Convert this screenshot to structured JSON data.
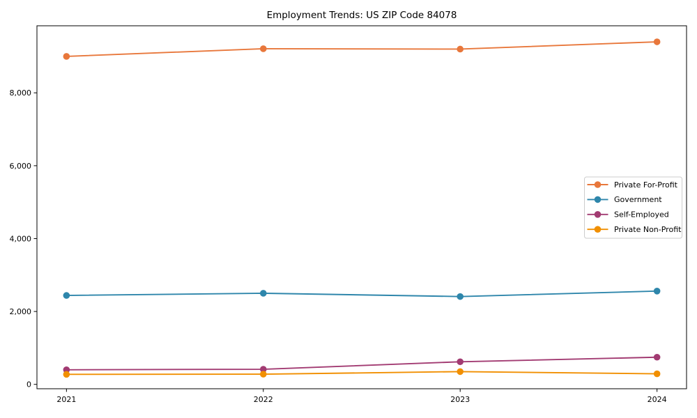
{
  "chart_data": {
    "type": "line",
    "title": "Employment Trends: US ZIP Code 84078",
    "x": [
      2021,
      2022,
      2023,
      2024
    ],
    "x_tick_labels": [
      "2021",
      "2022",
      "2023",
      "2024"
    ],
    "series": [
      {
        "name": "Private For-Profit",
        "color": "#e8773b",
        "values": [
          9000,
          9210,
          9200,
          9400
        ]
      },
      {
        "name": "Government",
        "color": "#2e86ab",
        "values": [
          2440,
          2500,
          2410,
          2560
        ]
      },
      {
        "name": "Self-Employed",
        "color": "#a23b72",
        "values": [
          400,
          415,
          620,
          745
        ]
      },
      {
        "name": "Private Non-Profit",
        "color": "#f18f01",
        "values": [
          275,
          280,
          350,
          290
        ]
      }
    ],
    "yticks": [
      0,
      2000,
      4000,
      6000,
      8000
    ],
    "ytick_labels": [
      "0",
      "2,000",
      "4,000",
      "6,000",
      "8,000"
    ],
    "ylim": [
      -120,
      9840
    ],
    "xlim": [
      2020.85,
      2024.15
    ],
    "grid": false,
    "marker": "circle",
    "xlabel": "",
    "ylabel": "",
    "legend": {
      "position": "center-right",
      "border_color": "#cccccc",
      "entries": [
        "Private For-Profit",
        "Government",
        "Self-Employed",
        "Private Non-Profit"
      ]
    }
  }
}
